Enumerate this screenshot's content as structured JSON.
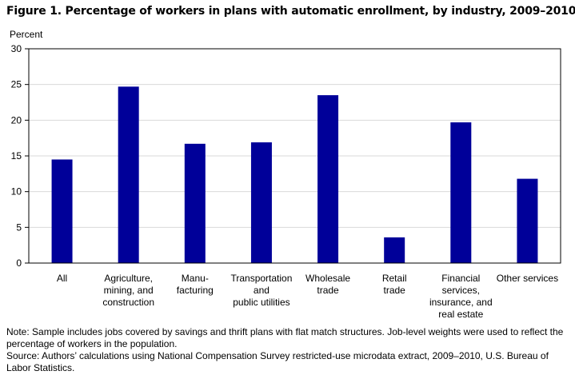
{
  "figure": {
    "title": "Figure 1. Percentage of workers in plans with automatic enrollment, by industry, 2009–2010"
  },
  "chart_data": {
    "type": "bar",
    "title": "Figure 1. Percentage of workers in plans with automatic enrollment, by industry, 2009–2010",
    "ylabel": "Percent",
    "xlabel": "",
    "ylim": [
      0,
      30
    ],
    "yticks": [
      0,
      5,
      10,
      15,
      20,
      25,
      30
    ],
    "grid": true,
    "categories": [
      [
        "All"
      ],
      [
        "Agriculture,",
        "mining, and",
        "construction"
      ],
      [
        "Manu-",
        "facturing"
      ],
      [
        "Transportation",
        "and",
        "public utilities"
      ],
      [
        "Wholesale",
        "trade"
      ],
      [
        "Retail",
        "trade"
      ],
      [
        "Financial",
        "services,",
        "insurance, and",
        "real estate"
      ],
      [
        "Other services"
      ]
    ],
    "values": [
      14.5,
      24.7,
      16.7,
      16.9,
      23.5,
      3.6,
      19.7,
      11.8
    ],
    "bar_color": "#000099"
  },
  "notes": {
    "note": "Note: Sample includes jobs covered by savings and thrift plans with flat match structures. Job-level weights were used to reflect the percentage of workers in the population.",
    "source": "Source: Authors’ calculations using National Compensation Survey restricted-use microdata extract, 2009–2010, U.S. Bureau of Labor Statistics."
  }
}
